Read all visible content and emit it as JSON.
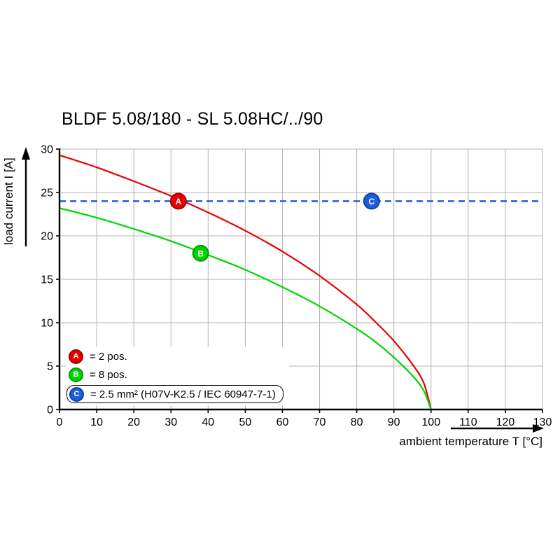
{
  "title": "BLDF 5.08/180 - SL 5.08HC/../90",
  "chart_data": {
    "type": "line",
    "title": "BLDF 5.08/180 - SL 5.08HC/../90",
    "xlabel": "ambient temperature T [°C]",
    "ylabel": "load current I [A]",
    "xlim": [
      0,
      130
    ],
    "ylim": [
      0,
      30
    ],
    "x_ticks": [
      0,
      10,
      20,
      30,
      40,
      50,
      60,
      70,
      80,
      90,
      100,
      110,
      120,
      130
    ],
    "y_ticks": [
      0,
      5,
      10,
      15,
      20,
      25,
      30
    ],
    "grid": true,
    "legend_position": "bottom-left-inside",
    "series": [
      {
        "name": "A",
        "label": "= 2 pos.",
        "style": "solid",
        "color": "#e60000",
        "edge": "#a30000",
        "marker_at": [
          32,
          24
        ],
        "points": [
          [
            0,
            29.3
          ],
          [
            10,
            27.9
          ],
          [
            20,
            26.3
          ],
          [
            30,
            24.6
          ],
          [
            40,
            22.7
          ],
          [
            50,
            20.6
          ],
          [
            60,
            18.2
          ],
          [
            70,
            15.4
          ],
          [
            80,
            12.1
          ],
          [
            85,
            10.1
          ],
          [
            90,
            7.9
          ],
          [
            95,
            5.2
          ],
          [
            98,
            3.1
          ],
          [
            100,
            0
          ]
        ]
      },
      {
        "name": "B",
        "label": "= 8 pos.",
        "style": "solid",
        "color": "#00d500",
        "edge": "#009b00",
        "marker_at": [
          38,
          18
        ],
        "points": [
          [
            0,
            23.2
          ],
          [
            10,
            22.1
          ],
          [
            20,
            20.8
          ],
          [
            30,
            19.4
          ],
          [
            40,
            17.8
          ],
          [
            50,
            16.1
          ],
          [
            60,
            14.1
          ],
          [
            70,
            11.9
          ],
          [
            80,
            9.3
          ],
          [
            85,
            7.8
          ],
          [
            90,
            6
          ],
          [
            95,
            3.9
          ],
          [
            98,
            2.2
          ],
          [
            100,
            0
          ]
        ]
      },
      {
        "name": "C",
        "label": "= 2.5 mm² (H07V-K2.5 / IEC 60947-7-1)",
        "style": "dashed",
        "color": "#1f5fd6",
        "edge": "#0d3fa6",
        "marker_at": [
          84,
          24
        ],
        "points": [
          [
            0,
            24
          ],
          [
            130,
            24
          ]
        ]
      }
    ]
  }
}
